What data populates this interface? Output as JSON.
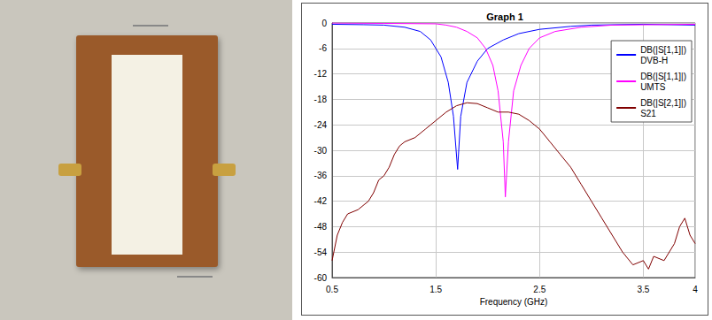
{
  "chart_data": {
    "type": "line",
    "title": "Graph 1",
    "x_label": "Frequency (GHz)",
    "xlim": [
      0.5,
      4
    ],
    "xticks": [
      0.5,
      1.5,
      2.5,
      3.5,
      4
    ],
    "ylim": [
      -60,
      0
    ],
    "yticks": [
      0,
      -6,
      -12,
      -18,
      -24,
      -30,
      -36,
      -42,
      -48,
      -54,
      -60
    ],
    "grid": true,
    "legend": "upper right",
    "series": [
      {
        "name": "DB(|S[1,1]|)\nDVB-H",
        "color": "#0000ff",
        "x": [
          0.5,
          0.8,
          1.0,
          1.2,
          1.35,
          1.45,
          1.55,
          1.62,
          1.67,
          1.71,
          1.74,
          1.8,
          1.9,
          2.0,
          2.15,
          2.3,
          2.5,
          2.8,
          3.0,
          3.5,
          4.0
        ],
        "values": [
          -0.3,
          -0.4,
          -0.5,
          -1,
          -2,
          -4,
          -8,
          -14,
          -22,
          -34.5,
          -22,
          -14,
          -9,
          -6,
          -4,
          -2.5,
          -1.5,
          -0.8,
          -0.5,
          -0.3,
          -0.5
        ]
      },
      {
        "name": "DB(|S[1,1]|)\nUMTS",
        "color": "#ff00ff",
        "x": [
          0.5,
          1.0,
          1.5,
          1.6,
          1.7,
          1.8,
          1.9,
          1.98,
          2.05,
          2.1,
          2.15,
          2.17,
          2.2,
          2.25,
          2.32,
          2.4,
          2.5,
          2.65,
          2.9,
          3.2,
          4.0
        ],
        "values": [
          0,
          -0.1,
          -0.2,
          -0.5,
          -1,
          -2,
          -3.5,
          -6,
          -10,
          -16,
          -28,
          -41,
          -28,
          -16,
          -10,
          -6,
          -3.5,
          -2,
          -1,
          -0.5,
          -0.3
        ]
      },
      {
        "name": "DB(|S[2,1]|)\nS21",
        "color": "#800000",
        "x": [
          0.5,
          0.55,
          0.6,
          0.65,
          0.75,
          0.85,
          0.9,
          0.95,
          1.0,
          1.05,
          1.1,
          1.15,
          1.2,
          1.3,
          1.4,
          1.5,
          1.6,
          1.7,
          1.8,
          1.9,
          2.0,
          2.1,
          2.2,
          2.3,
          2.4,
          2.5,
          2.6,
          2.7,
          2.8,
          2.9,
          3.0,
          3.1,
          3.2,
          3.3,
          3.4,
          3.5,
          3.55,
          3.6,
          3.7,
          3.8,
          3.85,
          3.9,
          3.95,
          4.0
        ],
        "values": [
          -56,
          -50,
          -47,
          -45,
          -44,
          -42,
          -40,
          -37,
          -36,
          -34,
          -31,
          -29,
          -28,
          -27,
          -25,
          -23,
          -21,
          -19.5,
          -18.8,
          -19,
          -20,
          -21,
          -21,
          -21.5,
          -23,
          -25,
          -28,
          -31,
          -34,
          -38,
          -42,
          -46,
          -50,
          -54,
          -57,
          -56,
          -58,
          -55,
          -56,
          -52,
          -48,
          -46,
          -50,
          -52
        ]
      }
    ]
  }
}
